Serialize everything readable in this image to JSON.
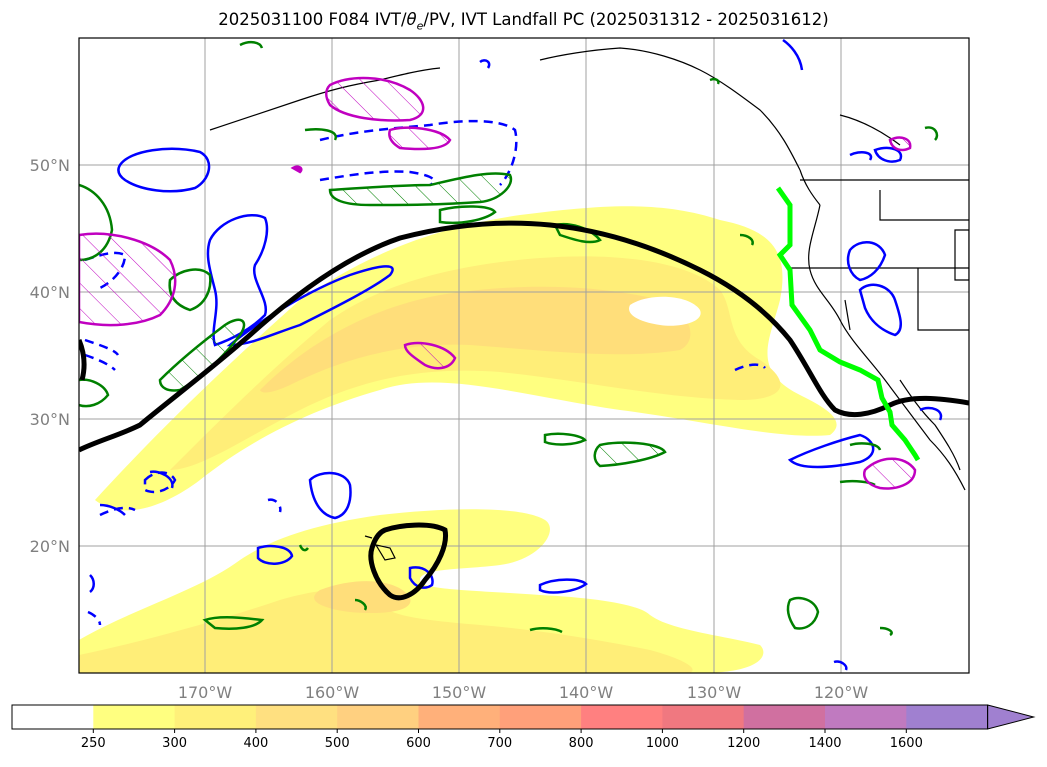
{
  "title": {
    "prefix": "2025031100 F084 IVT/",
    "theta": "θ",
    "theta_sub": "e",
    "suffix": "/PV, IVT Landfall PC (2025031312 - 2025031612)"
  },
  "latitude_labels": [
    "50°N",
    "40°N",
    "30°N",
    "20°N"
  ],
  "longitude_labels": [
    "170°W",
    "160°W",
    "150°W",
    "140°W",
    "130°W",
    "120°W"
  ],
  "colorbar": {
    "ticks": [
      "250",
      "300",
      "400",
      "500",
      "600",
      "700",
      "800",
      "1000",
      "1200",
      "1400",
      "1600"
    ],
    "colors": [
      "#ffffff",
      "#ffff80",
      "#fff07a",
      "#ffe080",
      "#ffd080",
      "#ffb07a",
      "#ffa07a",
      "#ff8080",
      "#f07880",
      "#d070a0",
      "#c07ac0",
      "#a080d0"
    ]
  },
  "contour_colors": {
    "ivt_fill_light": "#ffff80",
    "ivt_fill_mid": "#ffe680",
    "ivt_fill_dark": "#ffd27a",
    "pv_line": "#000000",
    "theta_e_green": "#008000",
    "blue": "#0000ff",
    "magenta": "#c000c0",
    "landfall": "#00ff00"
  }
}
